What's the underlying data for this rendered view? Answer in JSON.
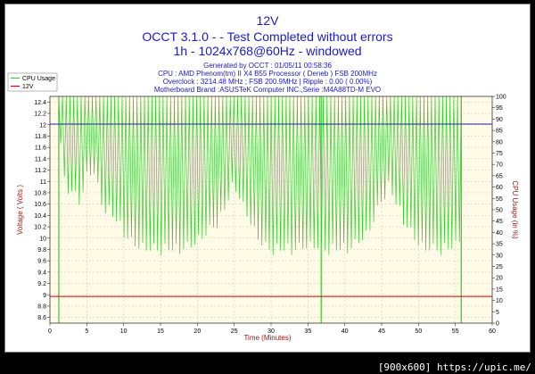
{
  "header": {
    "title": "12V",
    "subtitle1": "OCCT 3.1.0 -  - Test Completed without errors",
    "subtitle2": "1h - 1024x768@60Hz - windowed",
    "info": [
      "Generated by OCCT : 01/05/11 00:58:36",
      "CPU : AMD Phenom(tm) II X4 B55 Processor ( Deneb ) FSB 200MHz",
      "Overclock : 3214.48 MHz ; FSB 200.9MHz | Ripple : 0.00 ( 0.00%)",
      "Motherboard Brand :ASUSTeK Computer INC.,Serie :M4A88TD-M EVO"
    ]
  },
  "watermark": "[900x600] https://upic.me/",
  "colors": {
    "cpu_usage": "#33cc33",
    "voltage": "#cc0000",
    "cpu_line": "#2a2aa0",
    "plot_bg": "#fffbe6",
    "grid": "#b8b8b8",
    "title": "#1a1acb",
    "axis_label": "#a31515"
  },
  "chart_data": {
    "type": "line",
    "xlabel": "Time (Minutes)",
    "ylabel_left": "Voltage ( Volts )",
    "ylabel_right": "CPU Usage (in %)",
    "xlim": [
      0,
      60
    ],
    "ylim_left": [
      8.5,
      12.5
    ],
    "ylim_right": [
      0,
      100
    ],
    "x_ticks": [
      0,
      5,
      10,
      15,
      20,
      25,
      30,
      35,
      40,
      45,
      50,
      55,
      60
    ],
    "y_left_ticks": [
      "8.6",
      "8.8",
      "9",
      "9.2",
      "9.4",
      "9.6",
      "9.8",
      "10",
      "10.2",
      "10.4",
      "10.6",
      "10.8",
      "11",
      "11.2",
      "11.4",
      "11.6",
      "11.8",
      "12",
      "12.2",
      "12.4"
    ],
    "y_right_ticks": [
      "0",
      "5",
      "10",
      "15",
      "20",
      "25",
      "30",
      "35",
      "40",
      "45",
      "50",
      "55",
      "60",
      "65",
      "70",
      "75",
      "80",
      "85",
      "90",
      "95",
      "100"
    ],
    "grid": true,
    "legend": {
      "position": "top-left",
      "entries": [
        "CPU Usage",
        "12V"
      ]
    },
    "series": [
      {
        "name": "12V",
        "axis": "left",
        "x": [
          0,
          60
        ],
        "y": [
          8.97,
          8.97
        ]
      },
      {
        "name": "CPU Usage",
        "axis": "right",
        "x_start": 1.2,
        "x_end": 55.8,
        "max": 100,
        "baseline": 0,
        "min_trend": [
          [
            1.2,
            88
          ],
          [
            2,
            60
          ],
          [
            3,
            58
          ],
          [
            4,
            52
          ],
          [
            5,
            64
          ],
          [
            6,
            66
          ],
          [
            7,
            52
          ],
          [
            8,
            49
          ],
          [
            9,
            45
          ],
          [
            10,
            40
          ],
          [
            11,
            35
          ],
          [
            12,
            33
          ],
          [
            13,
            32
          ],
          [
            15,
            32
          ],
          [
            17,
            32
          ],
          [
            19,
            33
          ],
          [
            21,
            38
          ],
          [
            23,
            45
          ],
          [
            24,
            52
          ],
          [
            25,
            62
          ],
          [
            26,
            52
          ],
          [
            27,
            45
          ],
          [
            28,
            38
          ],
          [
            29,
            33
          ],
          [
            30,
            32
          ],
          [
            33,
            32
          ],
          [
            35,
            33
          ],
          [
            36.5,
            33
          ],
          [
            37,
            32
          ],
          [
            39,
            32
          ],
          [
            41,
            33
          ],
          [
            43,
            38
          ],
          [
            44,
            45
          ],
          [
            45,
            54
          ],
          [
            46,
            60
          ],
          [
            47,
            52
          ],
          [
            48,
            45
          ],
          [
            49,
            39
          ],
          [
            50,
            34
          ],
          [
            51,
            32
          ],
          [
            53,
            32
          ],
          [
            55,
            33
          ],
          [
            55.8,
            40
          ]
        ],
        "dips_to_zero": [
          1.2,
          36.8,
          55.8
        ]
      }
    ]
  }
}
